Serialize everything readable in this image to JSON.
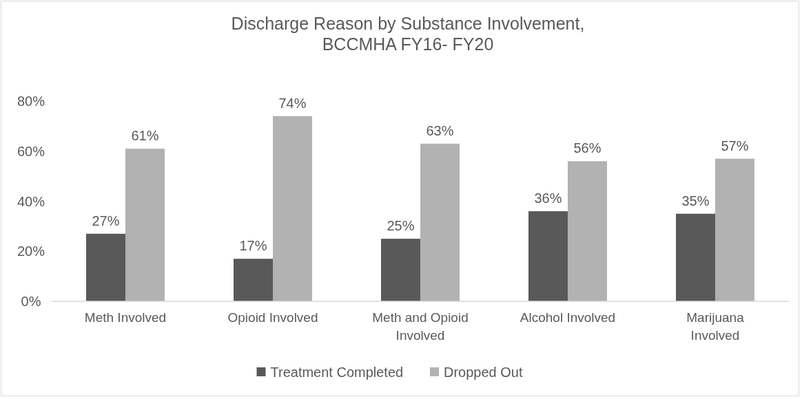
{
  "chart_data": {
    "type": "bar",
    "title": "Discharge Reason by Substance Involvement,\nBCCMHA  FY16- FY20",
    "categories": [
      "Meth Involved",
      "Opioid Involved",
      "Meth and Opioid Involved",
      "Alcohol Involved",
      "Marijuana Involved"
    ],
    "series": [
      {
        "name": "Treatment Completed",
        "color": "#595959",
        "values": [
          27,
          17,
          25,
          36,
          35
        ],
        "value_labels": [
          "27%",
          "17%",
          "25%",
          "36%",
          "35%"
        ]
      },
      {
        "name": "Dropped Out",
        "color": "#b2b2b2",
        "values": [
          61,
          74,
          63,
          56,
          57
        ],
        "value_labels": [
          "61%",
          "74%",
          "63%",
          "56%",
          "57%"
        ]
      }
    ],
    "ylim": [
      0,
      80
    ],
    "yticks": [
      {
        "value": 0,
        "label": "0%"
      },
      {
        "value": 20,
        "label": "20%"
      },
      {
        "value": 40,
        "label": "40%"
      },
      {
        "value": 60,
        "label": "60%"
      },
      {
        "value": 80,
        "label": "80%"
      }
    ],
    "grid": false,
    "legend": "bottom"
  }
}
